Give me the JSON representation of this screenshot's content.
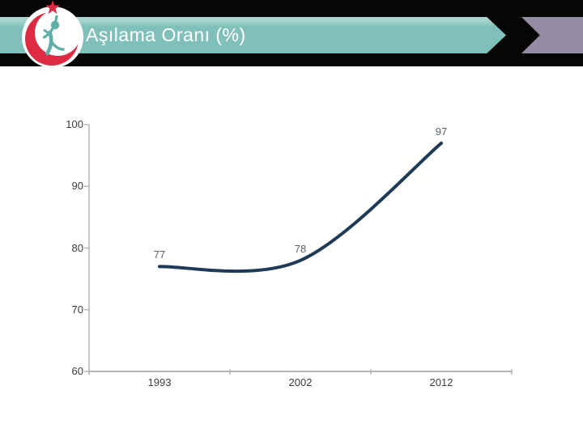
{
  "header": {
    "title": "Aşılama Oranı (%)",
    "logo": "turkey-ministry-of-health-emblem"
  },
  "chart_data": {
    "type": "line",
    "title": "Aşılama Oranı (%)",
    "categories": [
      "1993",
      "2002",
      "2012"
    ],
    "series": [
      {
        "name": "Aşılama Oranı (%)",
        "values": [
          77,
          78,
          97
        ],
        "labels": [
          "77",
          "78",
          "97"
        ]
      }
    ],
    "ylim": [
      60,
      100
    ],
    "yticks": [
      100,
      90,
      80,
      70,
      60
    ],
    "xlabel": "",
    "ylabel": "",
    "grid": false,
    "legend": false,
    "smooth": true,
    "line_color": "#1f3a57",
    "data_label_color": "#55606b",
    "axis_color": "#b3b3b3",
    "tick_label_color": "#3c3c3c"
  },
  "colors": {
    "band_teal": "#80c0ba",
    "band_teal_highlight": "#a9d6d2",
    "band_purple": "#958ca4",
    "bar_black": "#060606",
    "logo_red": "#dd2b43",
    "logo_figure_teal": "#5fb0a9"
  }
}
